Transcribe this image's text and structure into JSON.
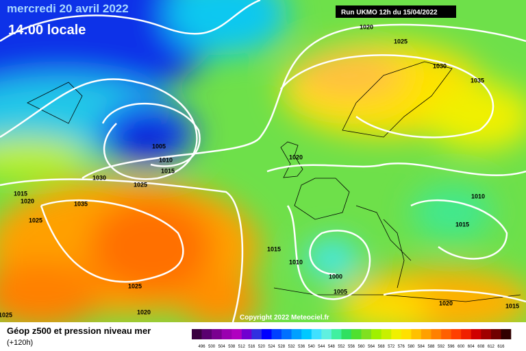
{
  "header": {
    "date": "mercredi 20 avril 2022",
    "time": "14:00 locale",
    "run": "Run UKMO 12h du 15/04/2022"
  },
  "isobar_labels": [
    1020,
    1025,
    1030,
    1035,
    1005,
    1010,
    1015,
    1030,
    1025,
    1020,
    1010,
    1015,
    1015,
    1020,
    1025,
    1035,
    1015,
    1010,
    1000,
    1005,
    1025,
    1020,
    1020,
    1015,
    1025
  ],
  "copyright": "Copyright 2022 Meteociel.fr",
  "legend": {
    "title": "Géop z500 et pression niveau mer",
    "subtitle": "(+120h)",
    "colors": [
      "#3a0040",
      "#5a0070",
      "#7a0090",
      "#9a00b0",
      "#b000c0",
      "#7000d0",
      "#3030e0",
      "#0000ff",
      "#0040ff",
      "#0070ff",
      "#00a0ff",
      "#00c8ff",
      "#40e0ff",
      "#60f0e0",
      "#40f0a0",
      "#30e060",
      "#50e030",
      "#80e020",
      "#a0f000",
      "#c8f000",
      "#f0f000",
      "#ffe000",
      "#ffc000",
      "#ffa000",
      "#ff8000",
      "#ff6000",
      "#ff4000",
      "#f02000",
      "#d00000",
      "#a00000",
      "#700000",
      "#300000"
    ],
    "scale": [
      496,
      500,
      504,
      508,
      512,
      516,
      520,
      524,
      528,
      532,
      536,
      540,
      544,
      548,
      552,
      556,
      560,
      564,
      568,
      572,
      576,
      580,
      584,
      588,
      592,
      596,
      600,
      604,
      608,
      612,
      616
    ]
  }
}
